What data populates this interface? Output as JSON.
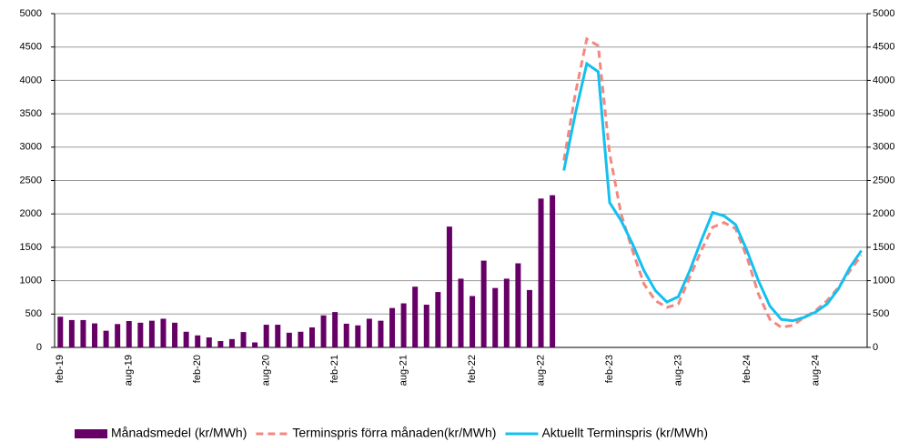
{
  "chart_data": {
    "type": "bar_line",
    "categories": [
      "feb-19",
      null,
      null,
      null,
      null,
      null,
      "aug-19",
      null,
      null,
      null,
      null,
      null,
      "feb-20",
      null,
      null,
      null,
      null,
      null,
      "aug-20",
      null,
      null,
      null,
      null,
      null,
      "feb-21",
      null,
      null,
      null,
      null,
      null,
      "aug-21",
      null,
      null,
      null,
      null,
      null,
      "feb-22",
      null,
      null,
      null,
      null,
      null,
      "aug-22",
      null,
      null,
      null,
      null,
      null,
      "feb-23",
      null,
      null,
      null,
      null,
      null,
      "aug-23",
      null,
      null,
      null,
      null,
      null,
      "feb-24",
      null,
      null,
      null,
      null,
      null,
      "aug-24",
      null,
      null,
      null,
      null
    ],
    "series": [
      {
        "name": "Månadsmedel (kr/MWh)",
        "type": "bar",
        "color": "#660066",
        "values": [
          460,
          410,
          410,
          360,
          250,
          350,
          395,
          370,
          400,
          430,
          370,
          235,
          180,
          150,
          95,
          125,
          230,
          75,
          340,
          340,
          220,
          235,
          300,
          480,
          530,
          355,
          330,
          430,
          400,
          590,
          660,
          910,
          640,
          830,
          1810,
          1030,
          770,
          1300,
          890,
          1030,
          1260,
          860,
          2230,
          2280,
          null,
          null,
          null,
          null,
          null,
          null,
          null,
          null,
          null,
          null,
          null,
          null,
          null,
          null,
          null,
          null,
          null,
          null,
          null,
          null,
          null,
          null,
          null,
          null,
          null,
          null,
          null
        ]
      },
      {
        "name": "Terminspris förra månaden(kr/MWh)",
        "type": "line",
        "line_style": "dashed",
        "color": "#f4877f",
        "values": [
          null,
          null,
          null,
          null,
          null,
          null,
          null,
          null,
          null,
          null,
          null,
          null,
          null,
          null,
          null,
          null,
          null,
          null,
          null,
          null,
          null,
          null,
          null,
          null,
          null,
          null,
          null,
          null,
          null,
          null,
          null,
          null,
          null,
          null,
          null,
          null,
          null,
          null,
          null,
          null,
          null,
          null,
          null,
          null,
          2800,
          3800,
          4620,
          4520,
          2900,
          2000,
          1450,
          950,
          700,
          600,
          650,
          1050,
          1450,
          1800,
          1870,
          1780,
          1350,
          800,
          420,
          300,
          330,
          450,
          550,
          700,
          900,
          1150,
          1380
        ]
      },
      {
        "name": "Aktuellt Terminspris (kr/MWh)",
        "type": "line",
        "line_style": "solid",
        "color": "#13c0ef",
        "values": [
          null,
          null,
          null,
          null,
          null,
          null,
          null,
          null,
          null,
          null,
          null,
          null,
          null,
          null,
          null,
          null,
          null,
          null,
          null,
          null,
          null,
          null,
          null,
          null,
          null,
          null,
          null,
          null,
          null,
          null,
          null,
          null,
          null,
          null,
          null,
          null,
          null,
          null,
          null,
          null,
          null,
          null,
          null,
          null,
          2650,
          3500,
          4250,
          4130,
          2170,
          1900,
          1550,
          1150,
          850,
          680,
          760,
          1150,
          1600,
          2020,
          1970,
          1840,
          1450,
          1000,
          620,
          420,
          400,
          450,
          530,
          650,
          880,
          1200,
          1450
        ]
      }
    ],
    "ylim": [
      0,
      5000
    ],
    "yticks": [
      0,
      500,
      1000,
      1500,
      2000,
      2500,
      3000,
      3500,
      4000,
      4500,
      5000
    ],
    "y2lim": [
      0,
      5000
    ],
    "y2ticks": [
      0,
      500,
      1000,
      1500,
      2000,
      2500,
      3000,
      3500,
      4000,
      4500,
      5000
    ],
    "grid": true,
    "legend": "bottom"
  }
}
